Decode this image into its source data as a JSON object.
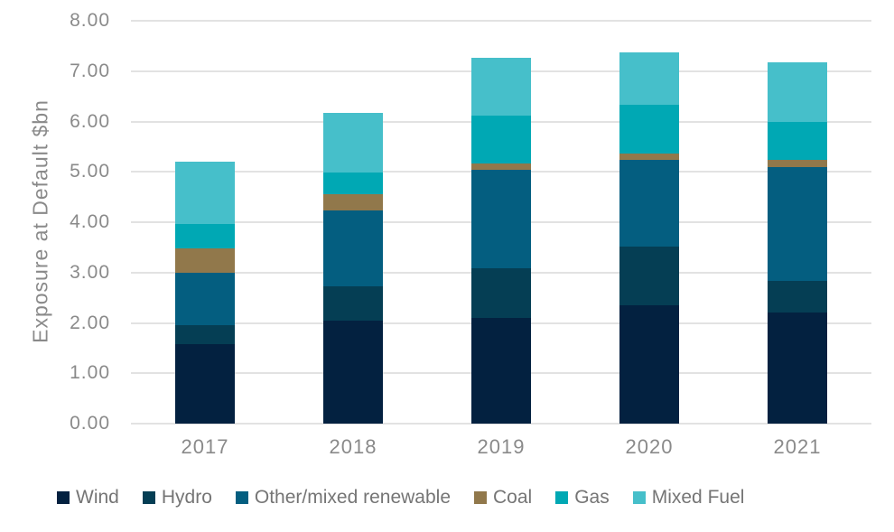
{
  "chart_data": {
    "type": "bar",
    "stacked": true,
    "title": "",
    "xlabel": "",
    "ylabel": "Exposure at Default $bn",
    "categories": [
      "2017",
      "2018",
      "2019",
      "2020",
      "2021"
    ],
    "series": [
      {
        "name": "Wind",
        "color": "#032140",
        "values": [
          1.57,
          2.04,
          2.09,
          2.35,
          2.2
        ]
      },
      {
        "name": "Hydro",
        "color": "#053E54",
        "values": [
          0.39,
          0.68,
          1.0,
          1.16,
          0.64
        ]
      },
      {
        "name": "Other/mixed renewable",
        "color": "#045E80",
        "values": [
          1.04,
          1.51,
          1.95,
          1.72,
          2.26
        ]
      },
      {
        "name": "Coal",
        "color": "#91784B",
        "values": [
          0.48,
          0.33,
          0.13,
          0.13,
          0.13
        ]
      },
      {
        "name": "Gas",
        "color": "#00A8B4",
        "values": [
          0.48,
          0.43,
          0.94,
          0.97,
          0.76
        ]
      },
      {
        "name": "Mixed Fuel",
        "color": "#46BFCA",
        "values": [
          1.25,
          1.18,
          1.15,
          1.04,
          1.18
        ]
      }
    ],
    "ylim": [
      0,
      8
    ],
    "ytick_labels": [
      "8.00",
      "7.00",
      "6.00",
      "5.00",
      "4.00",
      "3.00",
      "2.00",
      "1.00",
      "0.00"
    ],
    "grid": "horizontal",
    "legend_position": "bottom",
    "style": {
      "gridline_color": "#e2e2e2",
      "axis_text_color": "#8a8a8a",
      "legend_text_color": "#757575",
      "background_color": "#ffffff"
    }
  }
}
